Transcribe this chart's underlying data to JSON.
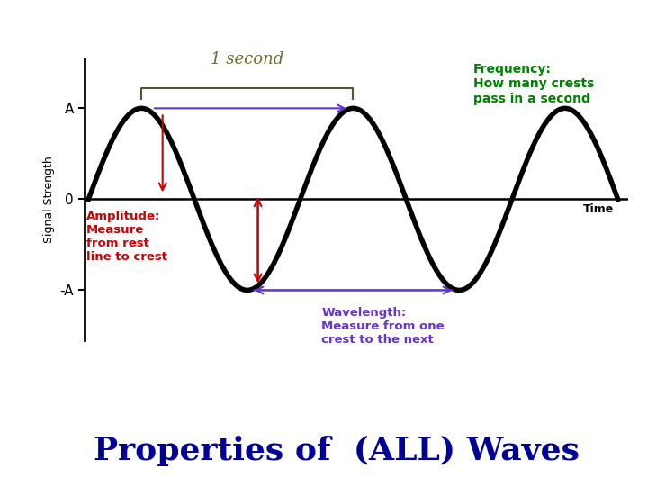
{
  "bg_color": "#ffffff",
  "wave_color": "#000000",
  "wave_linewidth": 4.0,
  "axis_color": "#000000",
  "freq_text": "Frequency:\nHow many crests\npass in a second",
  "freq_color": "#008000",
  "amplitude_text": "Amplitude:\nMeasure\nfrom rest\nline to crest",
  "amplitude_color": "#cc0000",
  "wavelength_text": "Wavelength:\nMeasure from one\ncrest to the next",
  "wavelength_color": "#6633cc",
  "one_second_text": "1 second",
  "one_second_color": "#6b6b2f",
  "properties_text": "Properties of  (ALL) Waves",
  "properties_color": "#000099",
  "properties_fontsize": 26,
  "arrow_color_red": "#cc0000",
  "arrow_color_purple": "#6633cc",
  "arrow_color_bracket": "#555533",
  "ylabel": "Signal Strength",
  "xlabel": "Time",
  "y_tick_A": "A",
  "y_tick_0": "0",
  "y_tick_negA": "-A"
}
